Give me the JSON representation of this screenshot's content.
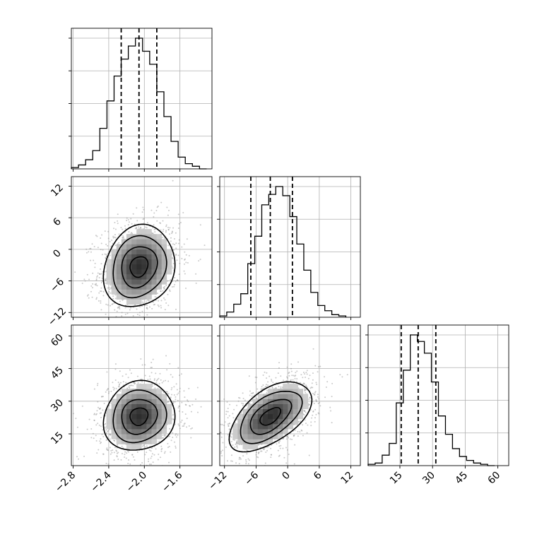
{
  "chart_data": {
    "type": "corner",
    "grid": true,
    "parameters": [
      {
        "ticks": [
          -2.8,
          -2.4,
          -2.0,
          -1.6
        ],
        "tick_labels": [
          "−2.8",
          "−2.4",
          "−2.0",
          "−1.6"
        ],
        "range": [
          -2.82,
          -1.24
        ],
        "quantiles": [
          -2.26,
          -2.06,
          -1.86
        ],
        "center": -2.06,
        "sigma": 0.2,
        "histogram": {
          "edges": [
            -2.82,
            -2.74,
            -2.66,
            -2.58,
            -2.5,
            -2.42,
            -2.34,
            -2.26,
            -2.18,
            -2.1,
            -2.02,
            -1.94,
            -1.86,
            -1.78,
            -1.7,
            -1.62,
            -1.54,
            -1.46,
            -1.38,
            -1.3
          ],
          "counts": [
            1,
            3,
            7,
            14,
            31,
            52,
            71,
            84,
            94,
            100,
            90,
            80,
            59,
            40,
            21,
            9,
            4,
            2,
            0
          ]
        }
      },
      {
        "ticks": [
          -12,
          -6,
          0,
          6,
          12
        ],
        "tick_labels": [
          "−12",
          "−6",
          "0",
          "6",
          "12"
        ],
        "range": [
          -12.9,
          13.8
        ],
        "quantiles": [
          -7.0,
          -3.3,
          0.9
        ],
        "center": -3.3,
        "sigma": 3.9,
        "histogram": {
          "edges": [
            -12.9,
            -11.57,
            -10.24,
            -8.91,
            -7.58,
            -6.25,
            -4.92,
            -3.59,
            -2.26,
            -0.93,
            0.4,
            1.73,
            3.06,
            4.39,
            5.72,
            7.05,
            8.38,
            9.71,
            11.04
          ],
          "counts": [
            1,
            4,
            10,
            18,
            41,
            62,
            86,
            94,
            100,
            93,
            77,
            56,
            36,
            19,
            9,
            5,
            2,
            1
          ]
        }
      },
      {
        "ticks": [
          15,
          30,
          45,
          60
        ],
        "tick_labels": [
          "15",
          "30",
          "45",
          "60"
        ],
        "range": [
          0.4,
          65.0
        ],
        "quantiles": [
          15.6,
          23.4,
          31.5
        ],
        "center": 23.0,
        "sigma": 8.0,
        "histogram": {
          "edges": [
            0.4,
            3.63,
            6.86,
            10.09,
            13.32,
            16.55,
            19.78,
            23.01,
            26.24,
            29.47,
            32.7,
            35.93,
            39.16,
            42.39,
            45.62,
            48.85,
            52.08,
            55.31,
            58.54
          ],
          "counts": [
            1,
            2,
            8,
            17,
            48,
            73,
            100,
            95,
            86,
            64,
            38,
            24,
            13,
            7,
            4,
            2,
            1,
            0
          ]
        }
      }
    ],
    "pairs": [
      {
        "row": 1,
        "col": 0,
        "correlation": 0.15
      },
      {
        "row": 2,
        "col": 0,
        "correlation": 0.1
      },
      {
        "row": 2,
        "col": 1,
        "correlation": 0.55
      }
    ]
  }
}
